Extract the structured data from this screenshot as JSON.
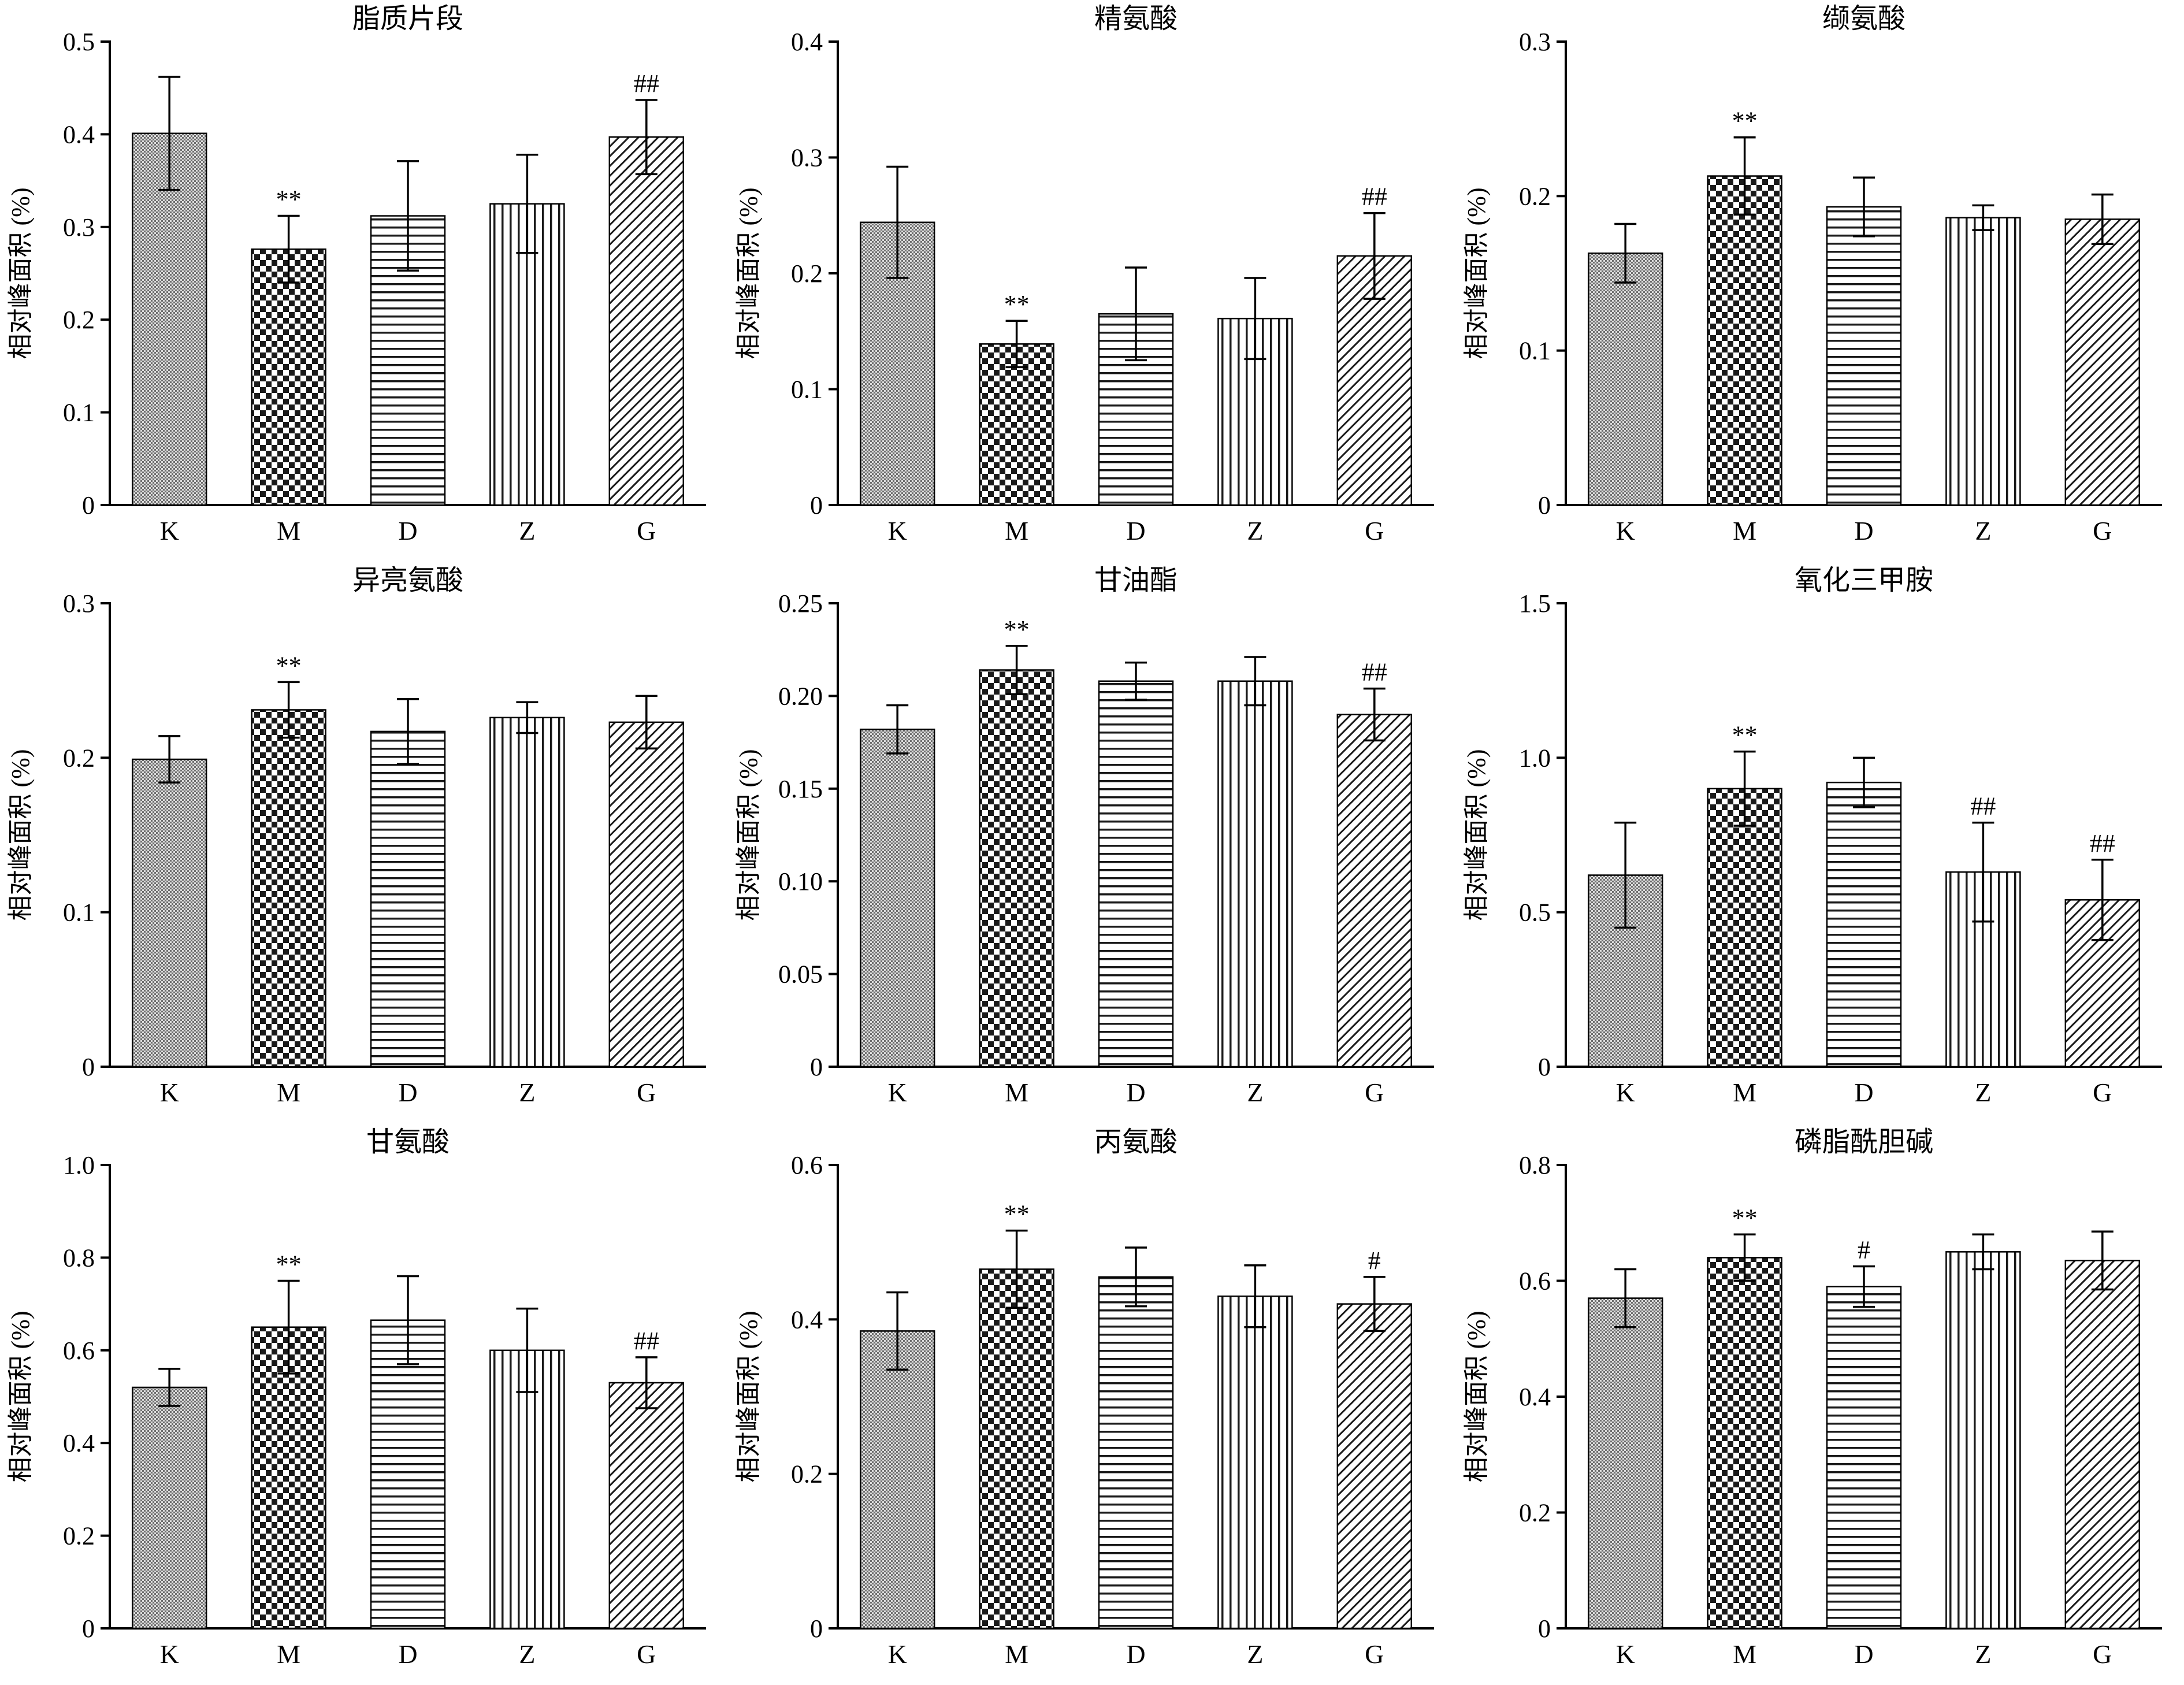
{
  "figure": {
    "ylabel": "相对峰面积 (%)",
    "categories": [
      "K",
      "M",
      "D",
      "Z",
      "G"
    ],
    "bar_patterns": [
      "fine-checker-gray",
      "coarse-checker",
      "horizontal-lines",
      "vertical-lines",
      "diagonal-lines"
    ],
    "axis_color": "#000000",
    "background_color": "#ffffff"
  },
  "chart_data": [
    {
      "type": "bar",
      "title": "脂质片段",
      "ylabel": "相对峰面积 (%)",
      "categories": [
        "K",
        "M",
        "D",
        "Z",
        "G"
      ],
      "values": [
        0.401,
        0.276,
        0.312,
        0.325,
        0.397
      ],
      "errors": [
        0.061,
        0.036,
        0.059,
        0.053,
        0.04
      ],
      "annotations": [
        "",
        "**",
        "",
        "",
        "##"
      ],
      "ylim": [
        0,
        0.5
      ],
      "yticks": [
        0,
        0.1,
        0.2,
        0.3,
        0.4,
        0.5
      ],
      "ytick_labels": [
        "0",
        "0.1",
        "0.2",
        "0.3",
        "0.4",
        "0.5"
      ],
      "grid": false,
      "legend": "none"
    },
    {
      "type": "bar",
      "title": "精氨酸",
      "ylabel": "相对峰面积 (%)",
      "categories": [
        "K",
        "M",
        "D",
        "Z",
        "G"
      ],
      "values": [
        0.244,
        0.139,
        0.165,
        0.161,
        0.215
      ],
      "errors": [
        0.048,
        0.02,
        0.04,
        0.035,
        0.037
      ],
      "annotations": [
        "",
        "**",
        "",
        "",
        "##"
      ],
      "ylim": [
        0,
        0.4
      ],
      "yticks": [
        0,
        0.1,
        0.2,
        0.3,
        0.4
      ],
      "ytick_labels": [
        "0",
        "0.1",
        "0.2",
        "0.3",
        "0.4"
      ],
      "grid": false,
      "legend": "none"
    },
    {
      "type": "bar",
      "title": "缬氨酸",
      "ylabel": "相对峰面积 (%)",
      "categories": [
        "K",
        "M",
        "D",
        "Z",
        "G"
      ],
      "values": [
        0.163,
        0.213,
        0.193,
        0.186,
        0.185
      ],
      "errors": [
        0.019,
        0.025,
        0.019,
        0.008,
        0.016
      ],
      "annotations": [
        "",
        "**",
        "",
        "",
        ""
      ],
      "ylim": [
        0,
        0.3
      ],
      "yticks": [
        0,
        0.1,
        0.2,
        0.3
      ],
      "ytick_labels": [
        "0",
        "0.1",
        "0.2",
        "0.3"
      ],
      "grid": false,
      "legend": "none"
    },
    {
      "type": "bar",
      "title": "异亮氨酸",
      "ylabel": "相对峰面积 (%)",
      "categories": [
        "K",
        "M",
        "D",
        "Z",
        "G"
      ],
      "values": [
        0.199,
        0.231,
        0.217,
        0.226,
        0.223
      ],
      "errors": [
        0.015,
        0.018,
        0.021,
        0.01,
        0.017
      ],
      "annotations": [
        "",
        "**",
        "",
        "",
        ""
      ],
      "ylim": [
        0,
        0.3
      ],
      "yticks": [
        0,
        0.1,
        0.2,
        0.3
      ],
      "ytick_labels": [
        "0",
        "0.1",
        "0.2",
        "0.3"
      ],
      "grid": false,
      "legend": "none"
    },
    {
      "type": "bar",
      "title": "甘油酯",
      "ylabel": "相对峰面积 (%)",
      "categories": [
        "K",
        "M",
        "D",
        "Z",
        "G"
      ],
      "values": [
        0.182,
        0.214,
        0.208,
        0.208,
        0.19
      ],
      "errors": [
        0.013,
        0.013,
        0.01,
        0.013,
        0.014
      ],
      "annotations": [
        "",
        "**",
        "",
        "",
        "##"
      ],
      "ylim": [
        0,
        0.25
      ],
      "yticks": [
        0,
        0.05,
        0.1,
        0.15,
        0.2,
        0.25
      ],
      "ytick_labels": [
        "0",
        "0.05",
        "0.10",
        "0.15",
        "0.20",
        "0.25"
      ],
      "grid": false,
      "legend": "none"
    },
    {
      "type": "bar",
      "title": "氧化三甲胺",
      "ylabel": "相对峰面积 (%)",
      "categories": [
        "K",
        "M",
        "D",
        "Z",
        "G"
      ],
      "values": [
        0.62,
        0.9,
        0.92,
        0.63,
        0.54
      ],
      "errors": [
        0.17,
        0.12,
        0.08,
        0.16,
        0.13
      ],
      "annotations": [
        "",
        "**",
        "",
        "##",
        "##"
      ],
      "ylim": [
        0,
        1.5
      ],
      "yticks": [
        0,
        0.5,
        1.0,
        1.5
      ],
      "ytick_labels": [
        "0",
        "0.5",
        "1.0",
        "1.5"
      ],
      "grid": false,
      "legend": "none"
    },
    {
      "type": "bar",
      "title": "甘氨酸",
      "ylabel": "相对峰面积 (%)",
      "categories": [
        "K",
        "M",
        "D",
        "Z",
        "G"
      ],
      "values": [
        0.52,
        0.65,
        0.665,
        0.6,
        0.53
      ],
      "errors": [
        0.04,
        0.1,
        0.095,
        0.09,
        0.055
      ],
      "annotations": [
        "",
        "**",
        "",
        "",
        "##"
      ],
      "ylim": [
        0,
        1.0
      ],
      "yticks": [
        0,
        0.2,
        0.4,
        0.6,
        0.8,
        1.0
      ],
      "ytick_labels": [
        "0",
        "0.2",
        "0.4",
        "0.6",
        "0.8",
        "1.0"
      ],
      "grid": false,
      "legend": "none"
    },
    {
      "type": "bar",
      "title": "丙氨酸",
      "ylabel": "相对峰面积 (%)",
      "categories": [
        "K",
        "M",
        "D",
        "Z",
        "G"
      ],
      "values": [
        0.385,
        0.465,
        0.455,
        0.43,
        0.42
      ],
      "errors": [
        0.05,
        0.05,
        0.038,
        0.04,
        0.035
      ],
      "annotations": [
        "",
        "**",
        "",
        "",
        "#"
      ],
      "ylim": [
        0,
        0.6
      ],
      "yticks": [
        0,
        0.2,
        0.4,
        0.6
      ],
      "ytick_labels": [
        "0",
        "0.2",
        "0.4",
        "0.6"
      ],
      "grid": false,
      "legend": "none"
    },
    {
      "type": "bar",
      "title": "磷脂酰胆碱",
      "ylabel": "相对峰面积 (%)",
      "categories": [
        "K",
        "M",
        "D",
        "Z",
        "G"
      ],
      "values": [
        0.57,
        0.64,
        0.59,
        0.65,
        0.635
      ],
      "errors": [
        0.05,
        0.04,
        0.035,
        0.03,
        0.05
      ],
      "annotations": [
        "",
        "**",
        "#",
        "",
        ""
      ],
      "ylim": [
        0,
        0.8
      ],
      "yticks": [
        0,
        0.2,
        0.4,
        0.6,
        0.8
      ],
      "ytick_labels": [
        "0",
        "0.2",
        "0.4",
        "0.6",
        "0.8"
      ],
      "grid": false,
      "legend": "none"
    }
  ]
}
